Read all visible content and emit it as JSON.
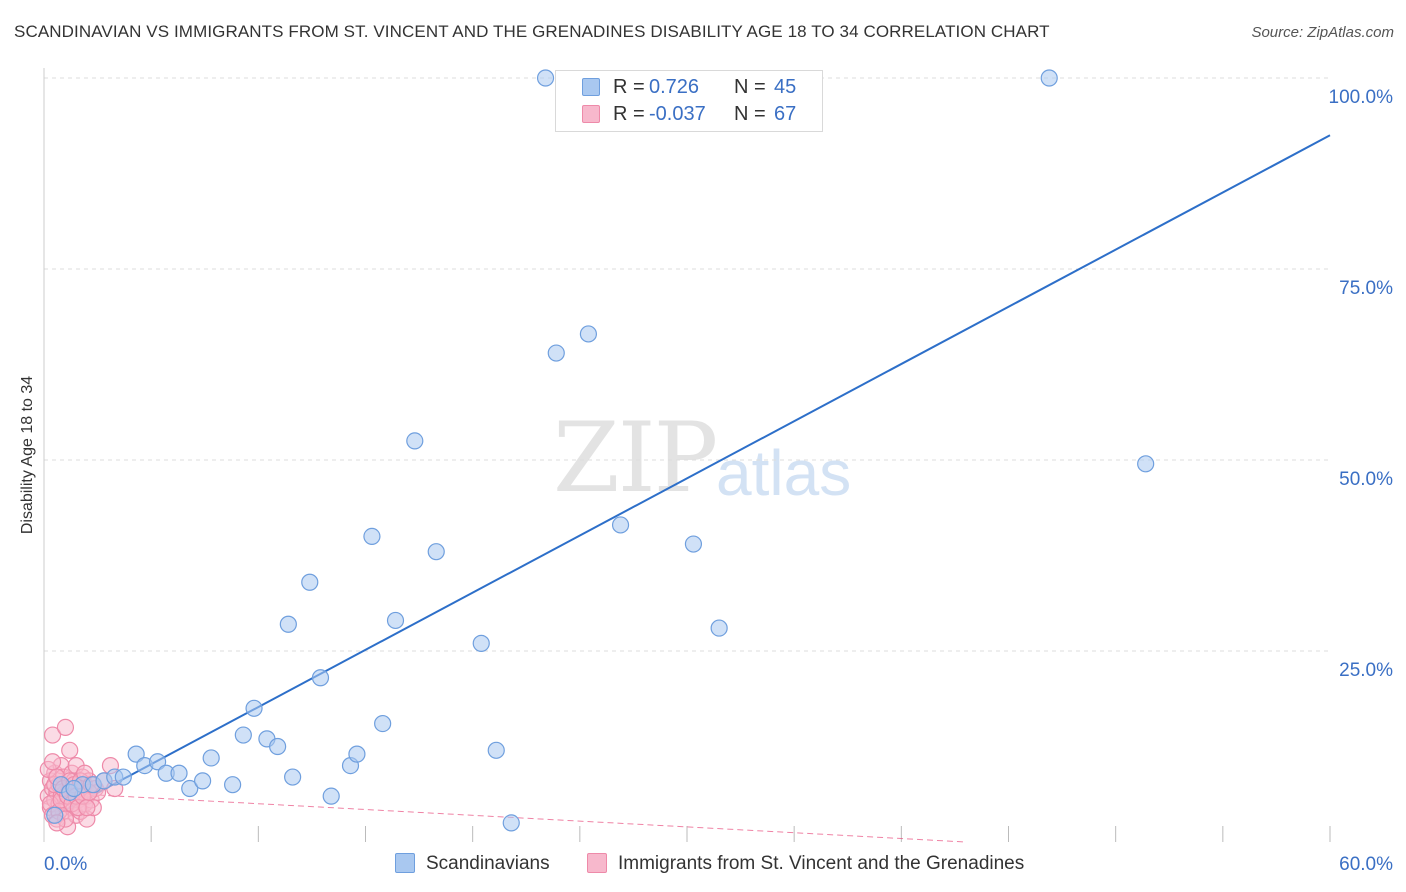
{
  "header": {
    "title": "SCANDINAVIAN VS IMMIGRANTS FROM ST. VINCENT AND THE GRENADINES DISABILITY AGE 18 TO 34 CORRELATION CHART",
    "source": "Source: ZipAtlas.com"
  },
  "watermark": {
    "zip": "ZIP",
    "atlas": "atlas"
  },
  "legend": {
    "rows": [
      {
        "r_label": "R =",
        "r_value": "0.726",
        "n_label": "N =",
        "n_value": "45",
        "color": "#a9c8f0"
      },
      {
        "r_label": "R =",
        "r_value": "-0.037",
        "n_label": "N =",
        "n_value": "67",
        "color": "#f7b8cc"
      }
    ]
  },
  "bottom_legend": {
    "items": [
      {
        "label": "Scandinavians",
        "color": "#a9c8f0"
      },
      {
        "label": "Immigrants from St. Vincent and the Grenadines",
        "color": "#f7b8cc"
      }
    ]
  },
  "chart_data": {
    "type": "scatter",
    "title": "SCANDINAVIAN VS IMMIGRANTS FROM ST. VINCENT AND THE GRENADINES DISABILITY AGE 18 TO 34 CORRELATION CHART",
    "xlabel": "",
    "ylabel": "Disability Age 18 to 34",
    "xlim": [
      0,
      60
    ],
    "ylim": [
      0,
      100
    ],
    "x_tick_labels": [
      {
        "value": 0,
        "label": "0.0%"
      },
      {
        "value": 60,
        "label": "60.0%"
      }
    ],
    "y_tick_labels": [
      {
        "value": 25,
        "label": "25.0%"
      },
      {
        "value": 50,
        "label": "50.0%"
      },
      {
        "value": 75,
        "label": "75.0%"
      },
      {
        "value": 100,
        "label": "100.0%"
      }
    ],
    "grid": true,
    "colors": {
      "blue": "#2d6fc9",
      "blue_fill": "#a9c8f0",
      "pink": "#e94f7f",
      "pink_fill": "#f7b8cc",
      "tick_label": "#3a6fc4"
    },
    "series": [
      {
        "name": "Scandinavians",
        "color": "#2d6fc9",
        "points": [
          [
            0.5,
            3.5
          ],
          [
            0.8,
            7.5
          ],
          [
            1.2,
            6.5
          ],
          [
            1.8,
            7.5
          ],
          [
            2.3,
            7.5
          ],
          [
            2.8,
            8.0
          ],
          [
            3.3,
            8.5
          ],
          [
            3.7,
            8.5
          ],
          [
            4.3,
            11.5
          ],
          [
            4.7,
            10.0
          ],
          [
            5.3,
            10.5
          ],
          [
            5.7,
            9.0
          ],
          [
            6.3,
            9.0
          ],
          [
            6.8,
            7.0
          ],
          [
            7.4,
            8.0
          ],
          [
            7.8,
            11.0
          ],
          [
            8.8,
            7.5
          ],
          [
            9.3,
            14.0
          ],
          [
            9.8,
            17.5
          ],
          [
            10.4,
            13.5
          ],
          [
            10.9,
            12.5
          ],
          [
            11.4,
            28.5
          ],
          [
            11.6,
            8.5
          ],
          [
            12.4,
            34.0
          ],
          [
            12.9,
            21.5
          ],
          [
            13.4,
            6.0
          ],
          [
            14.3,
            10.0
          ],
          [
            14.6,
            11.5
          ],
          [
            15.3,
            40.0
          ],
          [
            15.8,
            15.5
          ],
          [
            16.4,
            29.0
          ],
          [
            17.3,
            52.5
          ],
          [
            18.3,
            38.0
          ],
          [
            20.4,
            26.0
          ],
          [
            21.1,
            12.0
          ],
          [
            21.8,
            2.5
          ],
          [
            23.4,
            100.0
          ],
          [
            23.9,
            64.0
          ],
          [
            25.4,
            66.5
          ],
          [
            26.9,
            41.5
          ],
          [
            30.3,
            39.0
          ],
          [
            31.5,
            28.0
          ],
          [
            46.9,
            100.0
          ],
          [
            51.4,
            49.5
          ],
          [
            1.4,
            7.0
          ]
        ],
        "trendline": {
          "x": [
            0.2,
            60.0
          ],
          "y": [
            3.0,
            92.5
          ]
        }
      },
      {
        "name": "Immigrants from St. Vincent and the Grenadines",
        "color": "#e94f7f",
        "points": [
          [
            0.2,
            6.0
          ],
          [
            0.3,
            8.0
          ],
          [
            0.3,
            4.5
          ],
          [
            0.4,
            14.0
          ],
          [
            0.4,
            7.0
          ],
          [
            0.5,
            5.5
          ],
          [
            0.5,
            9.0
          ],
          [
            0.6,
            6.5
          ],
          [
            0.6,
            3.0
          ],
          [
            0.7,
            7.5
          ],
          [
            0.7,
            5.0
          ],
          [
            0.8,
            10.0
          ],
          [
            0.8,
            6.0
          ],
          [
            0.9,
            4.0
          ],
          [
            0.9,
            8.5
          ],
          [
            1.0,
            15.0
          ],
          [
            1.0,
            6.5
          ],
          [
            1.1,
            5.0
          ],
          [
            1.1,
            2.0
          ],
          [
            1.2,
            7.0
          ],
          [
            1.2,
            12.0
          ],
          [
            1.3,
            9.0
          ],
          [
            1.3,
            4.5
          ],
          [
            1.4,
            6.0
          ],
          [
            1.4,
            8.0
          ],
          [
            1.5,
            3.5
          ],
          [
            1.5,
            10.0
          ],
          [
            1.6,
            7.0
          ],
          [
            1.6,
            5.5
          ],
          [
            1.7,
            4.0
          ],
          [
            1.7,
            6.5
          ],
          [
            1.8,
            8.5
          ],
          [
            1.9,
            5.0
          ],
          [
            1.9,
            7.5
          ],
          [
            2.0,
            3.0
          ],
          [
            2.0,
            6.0
          ],
          [
            2.1,
            8.0
          ],
          [
            2.2,
            5.5
          ],
          [
            2.3,
            4.5
          ],
          [
            2.4,
            7.0
          ],
          [
            2.5,
            6.5
          ],
          [
            0.2,
            9.5
          ],
          [
            0.3,
            5.0
          ],
          [
            0.4,
            3.5
          ],
          [
            0.5,
            7.5
          ],
          [
            0.6,
            8.5
          ],
          [
            0.7,
            4.0
          ],
          [
            0.8,
            5.5
          ],
          [
            0.9,
            7.0
          ],
          [
            1.0,
            3.0
          ],
          [
            1.1,
            6.0
          ],
          [
            1.2,
            8.0
          ],
          [
            1.3,
            5.0
          ],
          [
            1.4,
            7.5
          ],
          [
            1.5,
            6.0
          ],
          [
            1.6,
            4.5
          ],
          [
            1.7,
            8.0
          ],
          [
            1.8,
            6.0
          ],
          [
            1.9,
            9.0
          ],
          [
            2.0,
            4.5
          ],
          [
            2.1,
            6.5
          ],
          [
            2.2,
            7.5
          ],
          [
            0.4,
            10.5
          ],
          [
            0.6,
            2.5
          ],
          [
            2.8,
            8.0
          ],
          [
            3.1,
            10.0
          ],
          [
            3.3,
            7.0
          ]
        ],
        "trendline": {
          "x": [
            0.2,
            43.0
          ],
          "y": [
            6.5,
            0.0
          ]
        }
      }
    ]
  }
}
